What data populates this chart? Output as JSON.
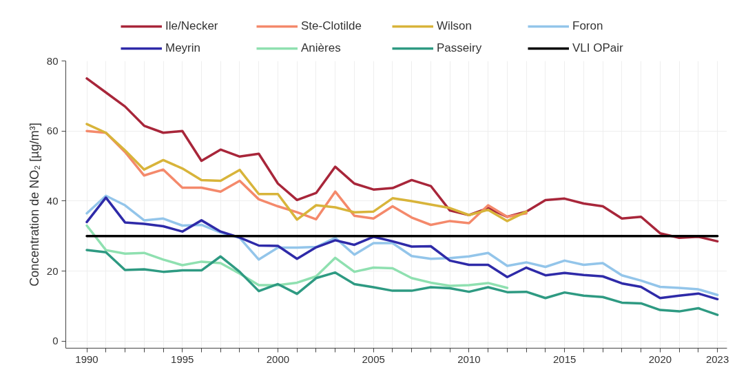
{
  "chart_data": {
    "type": "line",
    "ylabel": "Concentration de NO₂ [µg/m³]",
    "x": [
      1990,
      1991,
      1992,
      1993,
      1994,
      1995,
      1996,
      1997,
      1998,
      1999,
      2000,
      2001,
      2002,
      2003,
      2004,
      2005,
      2006,
      2007,
      2008,
      2009,
      2010,
      2011,
      2012,
      2013,
      2014,
      2015,
      2016,
      2017,
      2018,
      2019,
      2020,
      2021,
      2022,
      2023
    ],
    "series": [
      {
        "name": "Ile/Necker",
        "color": "#a8263a",
        "values": [
          75,
          71,
          67,
          61.5,
          59.5,
          60,
          51.5,
          54.7,
          52.7,
          53.5,
          45,
          40.3,
          42.3,
          49.8,
          45,
          43.3,
          43.7,
          46,
          44.3,
          37.3,
          36,
          38,
          35.5,
          37,
          40.3,
          40.7,
          39.3,
          38.5,
          35,
          35.5,
          30.8,
          29.5,
          29.8,
          28.5
        ]
      },
      {
        "name": "Ste-Clotilde",
        "color": "#f4896b",
        "values": [
          60,
          59.5,
          54,
          47.3,
          49,
          43.8,
          43.8,
          42.7,
          45.8,
          40.5,
          38.5,
          36.8,
          34.8,
          42.7,
          35.8,
          35,
          38.5,
          35.3,
          33.2,
          34.3,
          33.7,
          38.8,
          35.5,
          36.5,
          null,
          null,
          null,
          null,
          null,
          null,
          null,
          null,
          null,
          null
        ]
      },
      {
        "name": "Wilson",
        "color": "#d8b43a",
        "values": [
          62,
          59.5,
          54.5,
          49,
          51.7,
          49.3,
          46,
          45.8,
          48.9,
          42,
          42,
          34.7,
          38.8,
          38.2,
          36.8,
          37,
          40.8,
          40,
          39,
          38,
          36,
          37.5,
          34.3,
          37,
          null,
          null,
          null,
          null,
          null,
          null,
          null,
          null,
          null,
          null
        ]
      },
      {
        "name": "Foron",
        "color": "#93c5ea",
        "values": [
          36.5,
          41.5,
          38.8,
          34.5,
          35,
          33,
          33.2,
          31,
          29.5,
          23.3,
          26.7,
          26.7,
          26.9,
          29.5,
          24.7,
          28,
          28,
          24.3,
          23.5,
          23.7,
          24.2,
          25.2,
          21.5,
          22.5,
          21.2,
          23,
          21.8,
          22.3,
          18.8,
          17.3,
          15.5,
          15.2,
          14.8,
          13.2
        ]
      },
      {
        "name": "Meyrin",
        "color": "#2e2aa8",
        "values": [
          34,
          41,
          33.9,
          33.5,
          32.8,
          31.3,
          34.5,
          31.3,
          29.6,
          27.3,
          27.2,
          23.5,
          26.8,
          28.8,
          27.5,
          29.8,
          28.5,
          27,
          27.1,
          23,
          21.8,
          21.8,
          18.3,
          21,
          18.8,
          19.5,
          18.9,
          18.5,
          16.5,
          15.5,
          12.3,
          13,
          13.6,
          12
        ]
      },
      {
        "name": "Anières",
        "color": "#8fe0b0",
        "values": [
          33,
          26,
          25,
          25.2,
          23.3,
          21.7,
          22.7,
          22.3,
          19.3,
          16,
          16,
          16.7,
          18.5,
          23.8,
          19.8,
          21,
          20.8,
          18,
          16.7,
          15.8,
          16,
          16.6,
          15.2,
          null,
          null,
          null,
          null,
          null,
          null,
          null,
          null,
          null,
          null,
          null
        ]
      },
      {
        "name": "Passeiry",
        "color": "#2e9a82",
        "values": [
          26,
          25.4,
          20.3,
          20.5,
          19.8,
          20.2,
          20.2,
          24.2,
          19.8,
          14.3,
          16.3,
          13.5,
          18,
          19.6,
          16.3,
          15.4,
          14.4,
          14.4,
          15.4,
          15.1,
          14.1,
          15.4,
          14,
          14.1,
          12.3,
          13.9,
          13,
          12.6,
          11,
          10.8,
          8.9,
          8.5,
          9.4,
          7.5
        ]
      },
      {
        "name": "VLI OPair",
        "color": "#000000",
        "x": [
          1990,
          2023
        ],
        "values": [
          30,
          30
        ]
      }
    ],
    "xlim": [
      1988.9,
      2023.5
    ],
    "ylim": [
      -2,
      80
    ],
    "xticks": [
      1990,
      {
        "value": 1991,
        "label": null
      },
      {
        "value": 1992,
        "label": null
      },
      {
        "value": 1993,
        "label": null
      },
      {
        "value": 1994,
        "label": null
      },
      1995,
      {
        "value": 1996,
        "label": null
      },
      {
        "value": 1997,
        "label": null
      },
      {
        "value": 1998,
        "label": null
      },
      {
        "value": 1999,
        "label": null
      },
      2000,
      {
        "value": 2001,
        "label": null
      },
      {
        "value": 2002,
        "label": null
      },
      {
        "value": 2003,
        "label": null
      },
      {
        "value": 2004,
        "label": null
      },
      2005,
      {
        "value": 2006,
        "label": null
      },
      {
        "value": 2007,
        "label": null
      },
      {
        "value": 2008,
        "label": null
      },
      {
        "value": 2009,
        "label": null
      },
      2010,
      {
        "value": 2011,
        "label": null
      },
      {
        "value": 2012,
        "label": null
      },
      {
        "value": 2013,
        "label": null
      },
      {
        "value": 2014,
        "label": null
      },
      2015,
      {
        "value": 2016,
        "label": null
      },
      {
        "value": 2017,
        "label": null
      },
      {
        "value": 2018,
        "label": null
      },
      {
        "value": 2019,
        "label": null
      },
      2020,
      {
        "value": 2021,
        "label": null
      },
      {
        "value": 2022,
        "label": null
      },
      2023
    ],
    "yticks": [
      0,
      20,
      40,
      60,
      80
    ],
    "grid": true,
    "legend": "top",
    "line_style": "solid",
    "marker": "none"
  }
}
